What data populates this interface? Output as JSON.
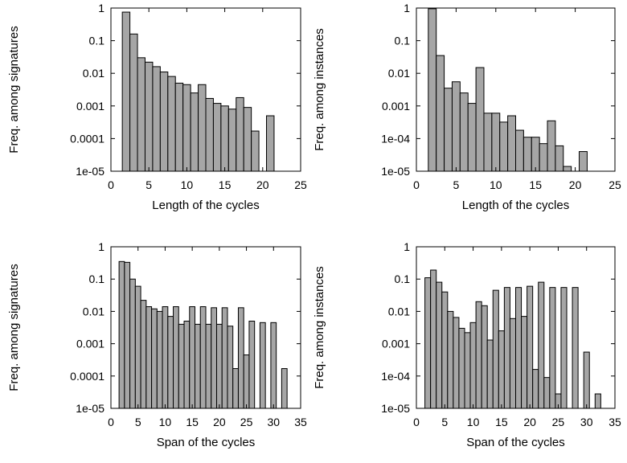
{
  "chart_data": [
    {
      "type": "bar",
      "xlabel": "Length of the cycles",
      "ylabel": "Freq. among signatures",
      "yscale": "log",
      "xlim": [
        0,
        25
      ],
      "ylim": [
        1e-05,
        1
      ],
      "xticks": [
        "0",
        "5",
        "10",
        "15",
        "20",
        "25"
      ],
      "yticks": [
        "1e-05",
        "0.0001",
        "0.001",
        "0.01",
        "0.1",
        "1"
      ],
      "bar_color": "#a6a6a6",
      "bars": [
        {
          "x": 2,
          "y": 0.75
        },
        {
          "x": 3,
          "y": 0.16
        },
        {
          "x": 4,
          "y": 0.03
        },
        {
          "x": 5,
          "y": 0.022
        },
        {
          "x": 6,
          "y": 0.016
        },
        {
          "x": 7,
          "y": 0.011
        },
        {
          "x": 8,
          "y": 0.008
        },
        {
          "x": 9,
          "y": 0.005
        },
        {
          "x": 10,
          "y": 0.0045
        },
        {
          "x": 11,
          "y": 0.0025
        },
        {
          "x": 12,
          "y": 0.0045
        },
        {
          "x": 13,
          "y": 0.0017
        },
        {
          "x": 14,
          "y": 0.0012
        },
        {
          "x": 15,
          "y": 0.001
        },
        {
          "x": 16,
          "y": 0.0008
        },
        {
          "x": 17,
          "y": 0.0018
        },
        {
          "x": 18,
          "y": 0.0009
        },
        {
          "x": 19,
          "y": 0.00017
        },
        {
          "x": 21,
          "y": 0.0005
        }
      ]
    },
    {
      "type": "bar",
      "xlabel": "Length of the cycles",
      "ylabel": "Freq. among instances",
      "yscale": "log",
      "xlim": [
        0,
        25
      ],
      "ylim": [
        1e-05,
        1
      ],
      "xticks": [
        "0",
        "5",
        "10",
        "15",
        "20",
        "25"
      ],
      "yticks": [
        "1e-05",
        "1e-04",
        "0.001",
        "0.01",
        "0.1",
        "1"
      ],
      "bar_color": "#a6a6a6",
      "bars": [
        {
          "x": 2,
          "y": 0.95
        },
        {
          "x": 3,
          "y": 0.035
        },
        {
          "x": 4,
          "y": 0.0035
        },
        {
          "x": 5,
          "y": 0.0055
        },
        {
          "x": 6,
          "y": 0.0025
        },
        {
          "x": 7,
          "y": 0.0012
        },
        {
          "x": 8,
          "y": 0.015
        },
        {
          "x": 9,
          "y": 0.0006
        },
        {
          "x": 10,
          "y": 0.0006
        },
        {
          "x": 11,
          "y": 0.00032
        },
        {
          "x": 12,
          "y": 0.0005
        },
        {
          "x": 13,
          "y": 0.00018
        },
        {
          "x": 14,
          "y": 0.00011
        },
        {
          "x": 15,
          "y": 0.00011
        },
        {
          "x": 16,
          "y": 7e-05
        },
        {
          "x": 17,
          "y": 0.00035
        },
        {
          "x": 18,
          "y": 6e-05
        },
        {
          "x": 19,
          "y": 1.4e-05
        },
        {
          "x": 21,
          "y": 4e-05
        }
      ]
    },
    {
      "type": "bar",
      "xlabel": "Span of the cycles",
      "ylabel": "Freq. among signatures",
      "yscale": "log",
      "xlim": [
        0,
        35
      ],
      "ylim": [
        1e-05,
        1
      ],
      "xticks": [
        "0",
        "5",
        "10",
        "15",
        "20",
        "25",
        "30",
        "35"
      ],
      "yticks": [
        "1e-05",
        "0.0001",
        "0.001",
        "0.01",
        "0.1",
        "1"
      ],
      "bar_color": "#a6a6a6",
      "bars": [
        {
          "x": 2,
          "y": 0.35
        },
        {
          "x": 3,
          "y": 0.33
        },
        {
          "x": 4,
          "y": 0.1
        },
        {
          "x": 5,
          "y": 0.06
        },
        {
          "x": 6,
          "y": 0.022
        },
        {
          "x": 7,
          "y": 0.014
        },
        {
          "x": 8,
          "y": 0.012
        },
        {
          "x": 9,
          "y": 0.01
        },
        {
          "x": 10,
          "y": 0.014
        },
        {
          "x": 11,
          "y": 0.007
        },
        {
          "x": 12,
          "y": 0.014
        },
        {
          "x": 13,
          "y": 0.004
        },
        {
          "x": 14,
          "y": 0.005
        },
        {
          "x": 15,
          "y": 0.014
        },
        {
          "x": 16,
          "y": 0.004
        },
        {
          "x": 17,
          "y": 0.014
        },
        {
          "x": 18,
          "y": 0.004
        },
        {
          "x": 19,
          "y": 0.013
        },
        {
          "x": 20,
          "y": 0.004
        },
        {
          "x": 21,
          "y": 0.013
        },
        {
          "x": 22,
          "y": 0.0035
        },
        {
          "x": 23,
          "y": 0.00017
        },
        {
          "x": 24,
          "y": 0.013
        },
        {
          "x": 25,
          "y": 0.00045
        },
        {
          "x": 26,
          "y": 0.005
        },
        {
          "x": 28,
          "y": 0.0045
        },
        {
          "x": 30,
          "y": 0.0045
        },
        {
          "x": 32,
          "y": 0.00017
        }
      ]
    },
    {
      "type": "bar",
      "xlabel": "Span of the cycles",
      "ylabel": "Freq. among instances",
      "yscale": "log",
      "xlim": [
        0,
        35
      ],
      "ylim": [
        1e-05,
        1
      ],
      "xticks": [
        "0",
        "5",
        "10",
        "15",
        "20",
        "25",
        "30",
        "35"
      ],
      "yticks": [
        "1e-05",
        "1e-04",
        "0.001",
        "0.01",
        "0.1",
        "1"
      ],
      "bar_color": "#a6a6a6",
      "bars": [
        {
          "x": 2,
          "y": 0.11
        },
        {
          "x": 3,
          "y": 0.19
        },
        {
          "x": 4,
          "y": 0.08
        },
        {
          "x": 5,
          "y": 0.04
        },
        {
          "x": 6,
          "y": 0.01
        },
        {
          "x": 7,
          "y": 0.0065
        },
        {
          "x": 8,
          "y": 0.003
        },
        {
          "x": 9,
          "y": 0.0022
        },
        {
          "x": 10,
          "y": 0.0045
        },
        {
          "x": 11,
          "y": 0.02
        },
        {
          "x": 12,
          "y": 0.015
        },
        {
          "x": 13,
          "y": 0.0013
        },
        {
          "x": 14,
          "y": 0.045
        },
        {
          "x": 15,
          "y": 0.0025
        },
        {
          "x": 16,
          "y": 0.055
        },
        {
          "x": 17,
          "y": 0.006
        },
        {
          "x": 18,
          "y": 0.055
        },
        {
          "x": 19,
          "y": 0.007
        },
        {
          "x": 20,
          "y": 0.06
        },
        {
          "x": 21,
          "y": 0.00016
        },
        {
          "x": 22,
          "y": 0.08
        },
        {
          "x": 23,
          "y": 9e-05
        },
        {
          "x": 24,
          "y": 0.055
        },
        {
          "x": 25,
          "y": 2.8e-05
        },
        {
          "x": 26,
          "y": 0.055
        },
        {
          "x": 28,
          "y": 0.055
        },
        {
          "x": 30,
          "y": 0.00055
        },
        {
          "x": 32,
          "y": 2.8e-05
        }
      ]
    }
  ]
}
